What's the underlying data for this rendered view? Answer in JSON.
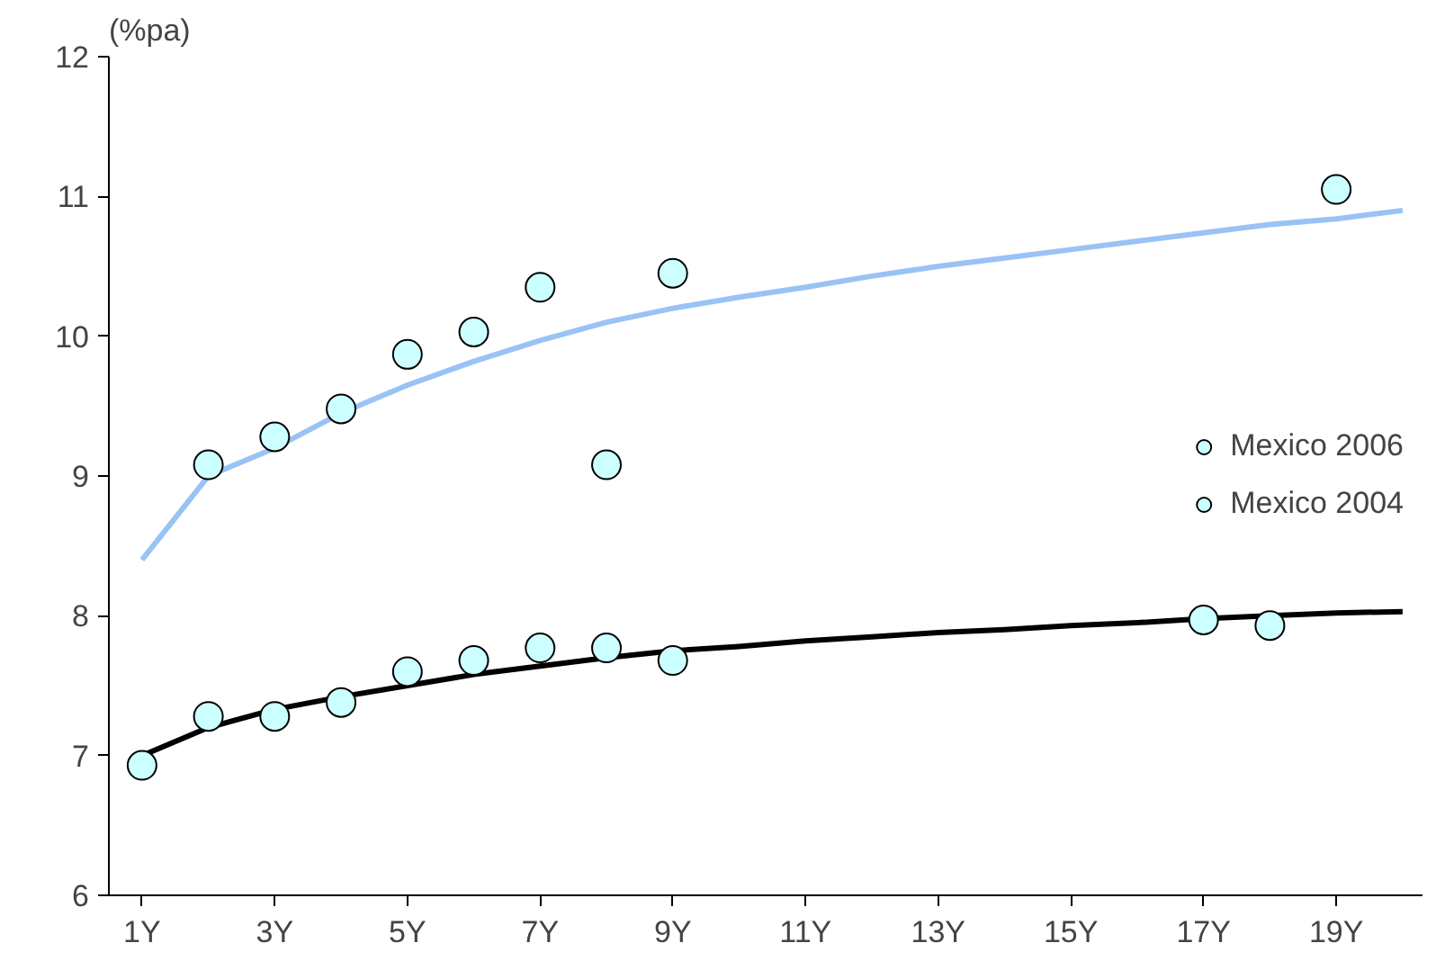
{
  "chart_data": {
    "type": "scatter",
    "ylabel": "(%pa)",
    "xlim": [
      0.5,
      20.3
    ],
    "ylim": [
      6,
      12
    ],
    "xticks": [
      {
        "value": 1,
        "label": "1Y"
      },
      {
        "value": 3,
        "label": "3Y"
      },
      {
        "value": 5,
        "label": "5Y"
      },
      {
        "value": 7,
        "label": "7Y"
      },
      {
        "value": 9,
        "label": "9Y"
      },
      {
        "value": 11,
        "label": "11Y"
      },
      {
        "value": 13,
        "label": "13Y"
      },
      {
        "value": 15,
        "label": "15Y"
      },
      {
        "value": 17,
        "label": "17Y"
      },
      {
        "value": 19,
        "label": "19Y"
      }
    ],
    "yticks": [
      6,
      7,
      8,
      9,
      10,
      11,
      12
    ],
    "grid": false,
    "legend": "right",
    "series": [
      {
        "type": "line",
        "marker": "none",
        "color": "#99c3f5",
        "x": [
          1,
          1.5,
          2,
          3,
          4,
          5,
          6,
          7,
          8,
          9,
          10,
          11,
          12,
          13,
          14,
          15,
          16,
          17,
          18,
          19,
          20
        ],
        "values": [
          8.4,
          8.7,
          9.0,
          9.2,
          9.45,
          9.65,
          9.82,
          9.97,
          10.1,
          10.2,
          10.28,
          10.35,
          10.43,
          10.5,
          10.56,
          10.62,
          10.68,
          10.74,
          10.8,
          10.84,
          10.9
        ]
      },
      {
        "type": "line",
        "marker": "none",
        "color": "#000000",
        "x": [
          1,
          2,
          3,
          4,
          5,
          6,
          7,
          8,
          9,
          10,
          11,
          12,
          13,
          14,
          15,
          16,
          17,
          18,
          19,
          20
        ],
        "values": [
          7.0,
          7.2,
          7.33,
          7.42,
          7.5,
          7.58,
          7.64,
          7.7,
          7.75,
          7.78,
          7.82,
          7.85,
          7.88,
          7.9,
          7.93,
          7.95,
          7.98,
          8.0,
          8.02,
          8.03
        ]
      },
      {
        "name": "Mexico 2006",
        "marker": "circle",
        "color": "#ccffff",
        "x": [
          2,
          3,
          4,
          5,
          6,
          7,
          8,
          9,
          19
        ],
        "values": [
          9.08,
          9.28,
          9.48,
          9.87,
          10.03,
          10.35,
          9.08,
          10.45,
          11.05
        ]
      },
      {
        "name": "Mexico 2004",
        "marker": "circle",
        "color": "#ccffff",
        "x": [
          1,
          2,
          3,
          4,
          5,
          6,
          7,
          8,
          9,
          17,
          18
        ],
        "values": [
          6.93,
          7.28,
          7.28,
          7.38,
          7.6,
          7.68,
          7.77,
          7.77,
          7.68,
          7.97,
          7.93
        ]
      }
    ]
  }
}
